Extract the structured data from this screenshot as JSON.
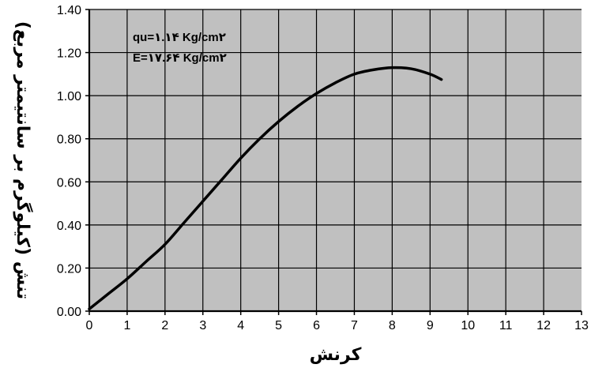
{
  "chart_data": {
    "type": "line",
    "title": "",
    "xlabel": "کرنش",
    "ylabel": "تنش (کیلوگرم بر سانتیمتر مربع)",
    "xlim": [
      0,
      13
    ],
    "ylim": [
      0,
      1.4
    ],
    "grid": true,
    "x_ticks": [
      0,
      1,
      2,
      3,
      4,
      5,
      6,
      7,
      8,
      9,
      10,
      11,
      12,
      13
    ],
    "x_tick_labels": [
      "0",
      "1",
      "2",
      "3",
      "4",
      "5",
      "6",
      "7",
      "8",
      "9",
      "10",
      "11",
      "12",
      "13"
    ],
    "y_ticks": [
      0,
      0.2,
      0.4,
      0.6,
      0.8,
      1.0,
      1.2,
      1.4
    ],
    "y_tick_labels": [
      "0.00",
      "0.20",
      "0.40",
      "0.60",
      "0.80",
      "1.00",
      "1.20",
      "1.40"
    ],
    "annotations": [
      "qu=۱.۱۴ Kg/cm۲",
      "E=۱۷.۶۴ Kg/cm۲"
    ],
    "series": [
      {
        "x": [
          0,
          0.5,
          1,
          1.5,
          2,
          2.5,
          3,
          3.5,
          4,
          4.5,
          5,
          5.5,
          6,
          6.5,
          7,
          7.5,
          8,
          8.5,
          9,
          9.3
        ],
        "y": [
          0.01,
          0.08,
          0.15,
          0.23,
          0.31,
          0.41,
          0.51,
          0.61,
          0.71,
          0.8,
          0.88,
          0.95,
          1.01,
          1.06,
          1.1,
          1.12,
          1.13,
          1.125,
          1.1,
          1.075
        ]
      }
    ],
    "colors": {
      "plot_background": "#c0c0c0",
      "grid": "#000000",
      "line": "#000000"
    }
  }
}
